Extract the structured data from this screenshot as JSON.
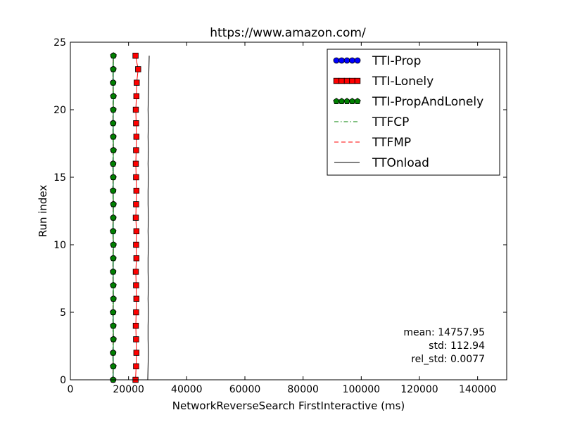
{
  "chart_data": {
    "type": "line",
    "title": "https://www.amazon.com/",
    "xlabel": "NetworkReverseSearch FirstInteractive (ms)",
    "ylabel": "Run index",
    "xlim": [
      0,
      150000
    ],
    "ylim": [
      0,
      25
    ],
    "xticks": [
      0,
      20000,
      40000,
      60000,
      80000,
      100000,
      120000,
      140000
    ],
    "xtick_labels": [
      "0",
      "20000",
      "40000",
      "60000",
      "80000",
      "100000",
      "120000",
      "140000"
    ],
    "yticks": [
      0,
      5,
      10,
      15,
      20,
      25
    ],
    "ytick_labels": [
      "0",
      "5",
      "10",
      "15",
      "20",
      "25"
    ],
    "y": [
      0,
      1,
      2,
      3,
      4,
      5,
      6,
      7,
      8,
      9,
      10,
      11,
      12,
      13,
      14,
      15,
      16,
      17,
      18,
      19,
      20,
      21,
      22,
      23,
      24
    ],
    "series": [
      {
        "name": "TTI-Prop",
        "style": "line-circle",
        "color": "#0000ff",
        "x": [
          14700,
          14750,
          14700,
          14800,
          14750,
          14700,
          14800,
          14750,
          14700,
          14750,
          14800,
          14700,
          14750,
          14800,
          14700,
          14750,
          14700,
          14800,
          14750,
          14700,
          14750,
          14800,
          14700,
          14750,
          14800
        ]
      },
      {
        "name": "TTI-Lonely",
        "style": "line-square",
        "color": "#ff0000",
        "x": [
          22400,
          22600,
          22700,
          22600,
          22500,
          22600,
          22700,
          22600,
          22500,
          22700,
          22600,
          22700,
          22500,
          22600,
          22700,
          22600,
          22500,
          22600,
          22700,
          22600,
          22500,
          22700,
          22800,
          23300,
          22400
        ]
      },
      {
        "name": "TTI-PropAndLonely",
        "style": "line-pentagon",
        "color": "#008000",
        "x": [
          14700,
          14750,
          14700,
          14800,
          14750,
          14700,
          14800,
          14750,
          14700,
          14750,
          14800,
          14700,
          14750,
          14800,
          14700,
          14750,
          14700,
          14800,
          14750,
          14700,
          14750,
          14800,
          14700,
          14750,
          14800
        ]
      },
      {
        "name": "TTFCP",
        "style": "dashdot",
        "color": "#008000",
        "x": [
          14600,
          14650,
          14600,
          14700,
          14650,
          14600,
          14700,
          14650,
          14600,
          14650,
          14700,
          14600,
          14650,
          14700,
          14600,
          14650,
          14600,
          14700,
          14650,
          14600,
          14650,
          14700,
          14600,
          14650,
          14700
        ]
      },
      {
        "name": "TTFMP",
        "style": "dashed",
        "color": "#ff0000",
        "x": [
          14600,
          14650,
          14600,
          14700,
          14650,
          14600,
          14700,
          14650,
          14600,
          14650,
          14700,
          14600,
          14650,
          14700,
          14600,
          14650,
          14600,
          14700,
          14650,
          14600,
          14650,
          14700,
          14600,
          14650,
          14700
        ]
      },
      {
        "name": "TTOnload",
        "style": "solid",
        "color": "#000000",
        "x": [
          26600,
          26700,
          26800,
          26700,
          26700,
          26800,
          26700,
          26800,
          26700,
          26700,
          26800,
          26700,
          26800,
          26700,
          26700,
          26800,
          26700,
          26800,
          26700,
          26800,
          26700,
          26800,
          26900,
          27000,
          27100
        ]
      }
    ],
    "stats": {
      "mean": "mean: 14757.95",
      "std": "std: 112.94",
      "rel_std": "rel_std: 0.0077"
    },
    "legend": "top-right",
    "grid": false
  }
}
